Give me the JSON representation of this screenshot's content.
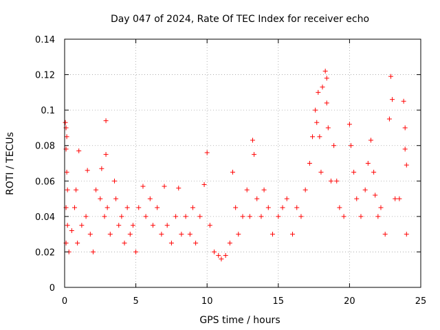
{
  "chart_data": {
    "type": "scatter",
    "title": "Day 047 of 2024, Rate Of TEC Index for receiver echo",
    "xlabel": "GPS time / hours",
    "ylabel": "ROTI / TECUs",
    "xlim": [
      0,
      25
    ],
    "ylim": [
      0,
      0.14
    ],
    "xticks": [
      0,
      5,
      10,
      15,
      20,
      25
    ],
    "xtick_labels": [
      "0",
      "5",
      "10",
      "15",
      "20",
      "25"
    ],
    "yticks": [
      0,
      0.02,
      0.04,
      0.06,
      0.08,
      0.1,
      0.12,
      0.14
    ],
    "ytick_labels": [
      "0",
      "0.02",
      "0.04",
      "0.06",
      "0.08",
      "0.1",
      "0.12",
      "0.14"
    ],
    "grid": true,
    "marker": "+",
    "color": "#ff0000",
    "series": [
      {
        "points": [
          [
            0.05,
            0.093
          ],
          [
            0.1,
            0.09
          ],
          [
            0.15,
            0.085
          ],
          [
            0.1,
            0.078
          ],
          [
            0.15,
            0.065
          ],
          [
            0.2,
            0.055
          ],
          [
            0.1,
            0.045
          ],
          [
            0.2,
            0.035
          ],
          [
            0.1,
            0.025
          ],
          [
            0.3,
            0.02
          ],
          [
            0.5,
            0.032
          ],
          [
            0.7,
            0.045
          ],
          [
            0.9,
            0.025
          ],
          [
            1.0,
            0.077
          ],
          [
            0.8,
            0.055
          ],
          [
            1.2,
            0.035
          ],
          [
            1.5,
            0.04
          ],
          [
            1.6,
            0.066
          ],
          [
            1.8,
            0.03
          ],
          [
            2.0,
            0.02
          ],
          [
            2.2,
            0.055
          ],
          [
            2.5,
            0.05
          ],
          [
            2.6,
            0.067
          ],
          [
            2.8,
            0.04
          ],
          [
            2.9,
            0.094
          ],
          [
            2.9,
            0.075
          ],
          [
            3.0,
            0.045
          ],
          [
            3.2,
            0.03
          ],
          [
            3.5,
            0.06
          ],
          [
            3.6,
            0.05
          ],
          [
            3.8,
            0.035
          ],
          [
            4.0,
            0.04
          ],
          [
            4.2,
            0.025
          ],
          [
            4.4,
            0.045
          ],
          [
            4.6,
            0.03
          ],
          [
            4.8,
            0.035
          ],
          [
            5.0,
            0.02
          ],
          [
            5.2,
            0.045
          ],
          [
            5.5,
            0.057
          ],
          [
            5.7,
            0.04
          ],
          [
            6.0,
            0.05
          ],
          [
            6.2,
            0.035
          ],
          [
            6.5,
            0.045
          ],
          [
            6.8,
            0.03
          ],
          [
            7.0,
            0.057
          ],
          [
            7.2,
            0.035
          ],
          [
            7.5,
            0.025
          ],
          [
            7.8,
            0.04
          ],
          [
            8.0,
            0.056
          ],
          [
            8.2,
            0.03
          ],
          [
            8.5,
            0.04
          ],
          [
            8.8,
            0.03
          ],
          [
            9.0,
            0.045
          ],
          [
            9.2,
            0.025
          ],
          [
            9.5,
            0.04
          ],
          [
            9.8,
            0.058
          ],
          [
            10.0,
            0.076
          ],
          [
            10.2,
            0.035
          ],
          [
            10.5,
            0.02
          ],
          [
            10.8,
            0.018
          ],
          [
            11.0,
            0.016
          ],
          [
            11.3,
            0.018
          ],
          [
            11.6,
            0.025
          ],
          [
            11.8,
            0.065
          ],
          [
            12.0,
            0.045
          ],
          [
            12.2,
            0.03
          ],
          [
            12.5,
            0.04
          ],
          [
            12.8,
            0.055
          ],
          [
            13.0,
            0.04
          ],
          [
            13.2,
            0.083
          ],
          [
            13.3,
            0.075
          ],
          [
            13.5,
            0.05
          ],
          [
            13.8,
            0.04
          ],
          [
            14.0,
            0.055
          ],
          [
            14.3,
            0.045
          ],
          [
            14.6,
            0.03
          ],
          [
            15.0,
            0.04
          ],
          [
            15.3,
            0.045
          ],
          [
            15.6,
            0.05
          ],
          [
            16.0,
            0.03
          ],
          [
            16.3,
            0.045
          ],
          [
            16.6,
            0.04
          ],
          [
            16.9,
            0.055
          ],
          [
            17.2,
            0.07
          ],
          [
            17.4,
            0.085
          ],
          [
            17.6,
            0.1
          ],
          [
            17.7,
            0.093
          ],
          [
            17.8,
            0.11
          ],
          [
            17.9,
            0.085
          ],
          [
            18.0,
            0.065
          ],
          [
            18.1,
            0.113
          ],
          [
            18.3,
            0.122
          ],
          [
            18.4,
            0.118
          ],
          [
            18.4,
            0.104
          ],
          [
            18.5,
            0.09
          ],
          [
            18.7,
            0.06
          ],
          [
            18.9,
            0.08
          ],
          [
            19.1,
            0.06
          ],
          [
            19.3,
            0.045
          ],
          [
            19.6,
            0.04
          ],
          [
            20.0,
            0.092
          ],
          [
            20.1,
            0.08
          ],
          [
            20.3,
            0.065
          ],
          [
            20.5,
            0.05
          ],
          [
            20.8,
            0.04
          ],
          [
            21.1,
            0.055
          ],
          [
            21.3,
            0.07
          ],
          [
            21.5,
            0.083
          ],
          [
            21.7,
            0.065
          ],
          [
            21.8,
            0.052
          ],
          [
            22.0,
            0.04
          ],
          [
            22.2,
            0.045
          ],
          [
            22.5,
            0.03
          ],
          [
            22.8,
            0.095
          ],
          [
            22.9,
            0.119
          ],
          [
            23.0,
            0.106
          ],
          [
            23.2,
            0.05
          ],
          [
            23.5,
            0.05
          ],
          [
            23.8,
            0.105
          ],
          [
            23.9,
            0.09
          ],
          [
            23.9,
            0.078
          ],
          [
            24.0,
            0.069
          ],
          [
            24.0,
            0.03
          ]
        ]
      }
    ]
  }
}
